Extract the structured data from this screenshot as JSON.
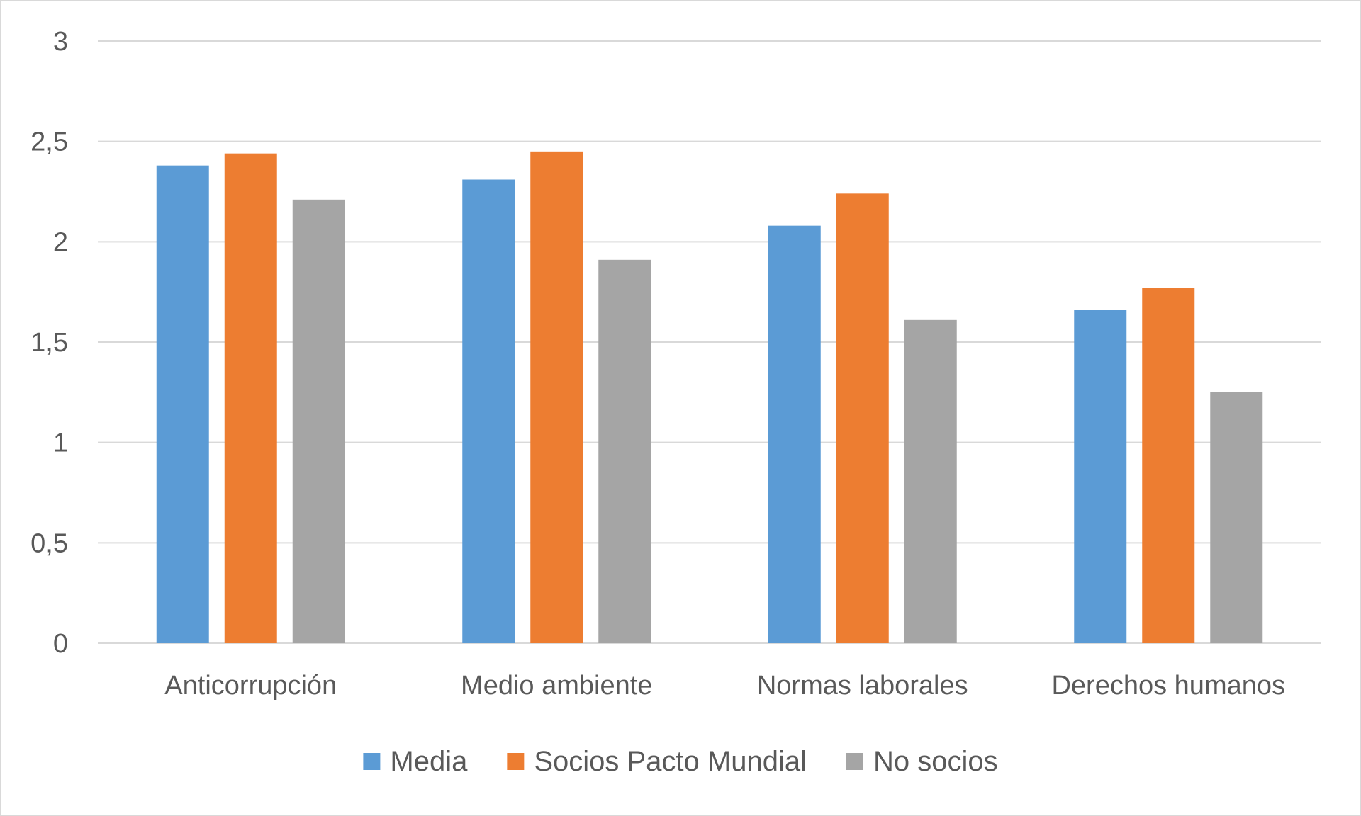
{
  "chart_data": {
    "type": "bar",
    "title": "",
    "xlabel": "",
    "ylabel": "",
    "categories": [
      "Anticorrupción",
      "Medio ambiente",
      "Normas laborales",
      "Derechos humanos"
    ],
    "series": [
      {
        "name": "Media",
        "color": "#5b9bd5",
        "values": [
          2.38,
          2.31,
          2.08,
          1.66
        ]
      },
      {
        "name": "Socios Pacto Mundial",
        "color": "#ed7d31",
        "values": [
          2.44,
          2.45,
          2.24,
          1.77
        ]
      },
      {
        "name": "No socios",
        "color": "#a5a5a5",
        "values": [
          2.21,
          1.91,
          1.61,
          1.25
        ]
      }
    ],
    "ylim": [
      0,
      3
    ],
    "yticks": [
      "0",
      "0,5",
      "1",
      "1,5",
      "2",
      "2,5",
      "3"
    ],
    "grid": true,
    "legend_position": "bottom",
    "gridline_color": "#d9d9d9"
  }
}
